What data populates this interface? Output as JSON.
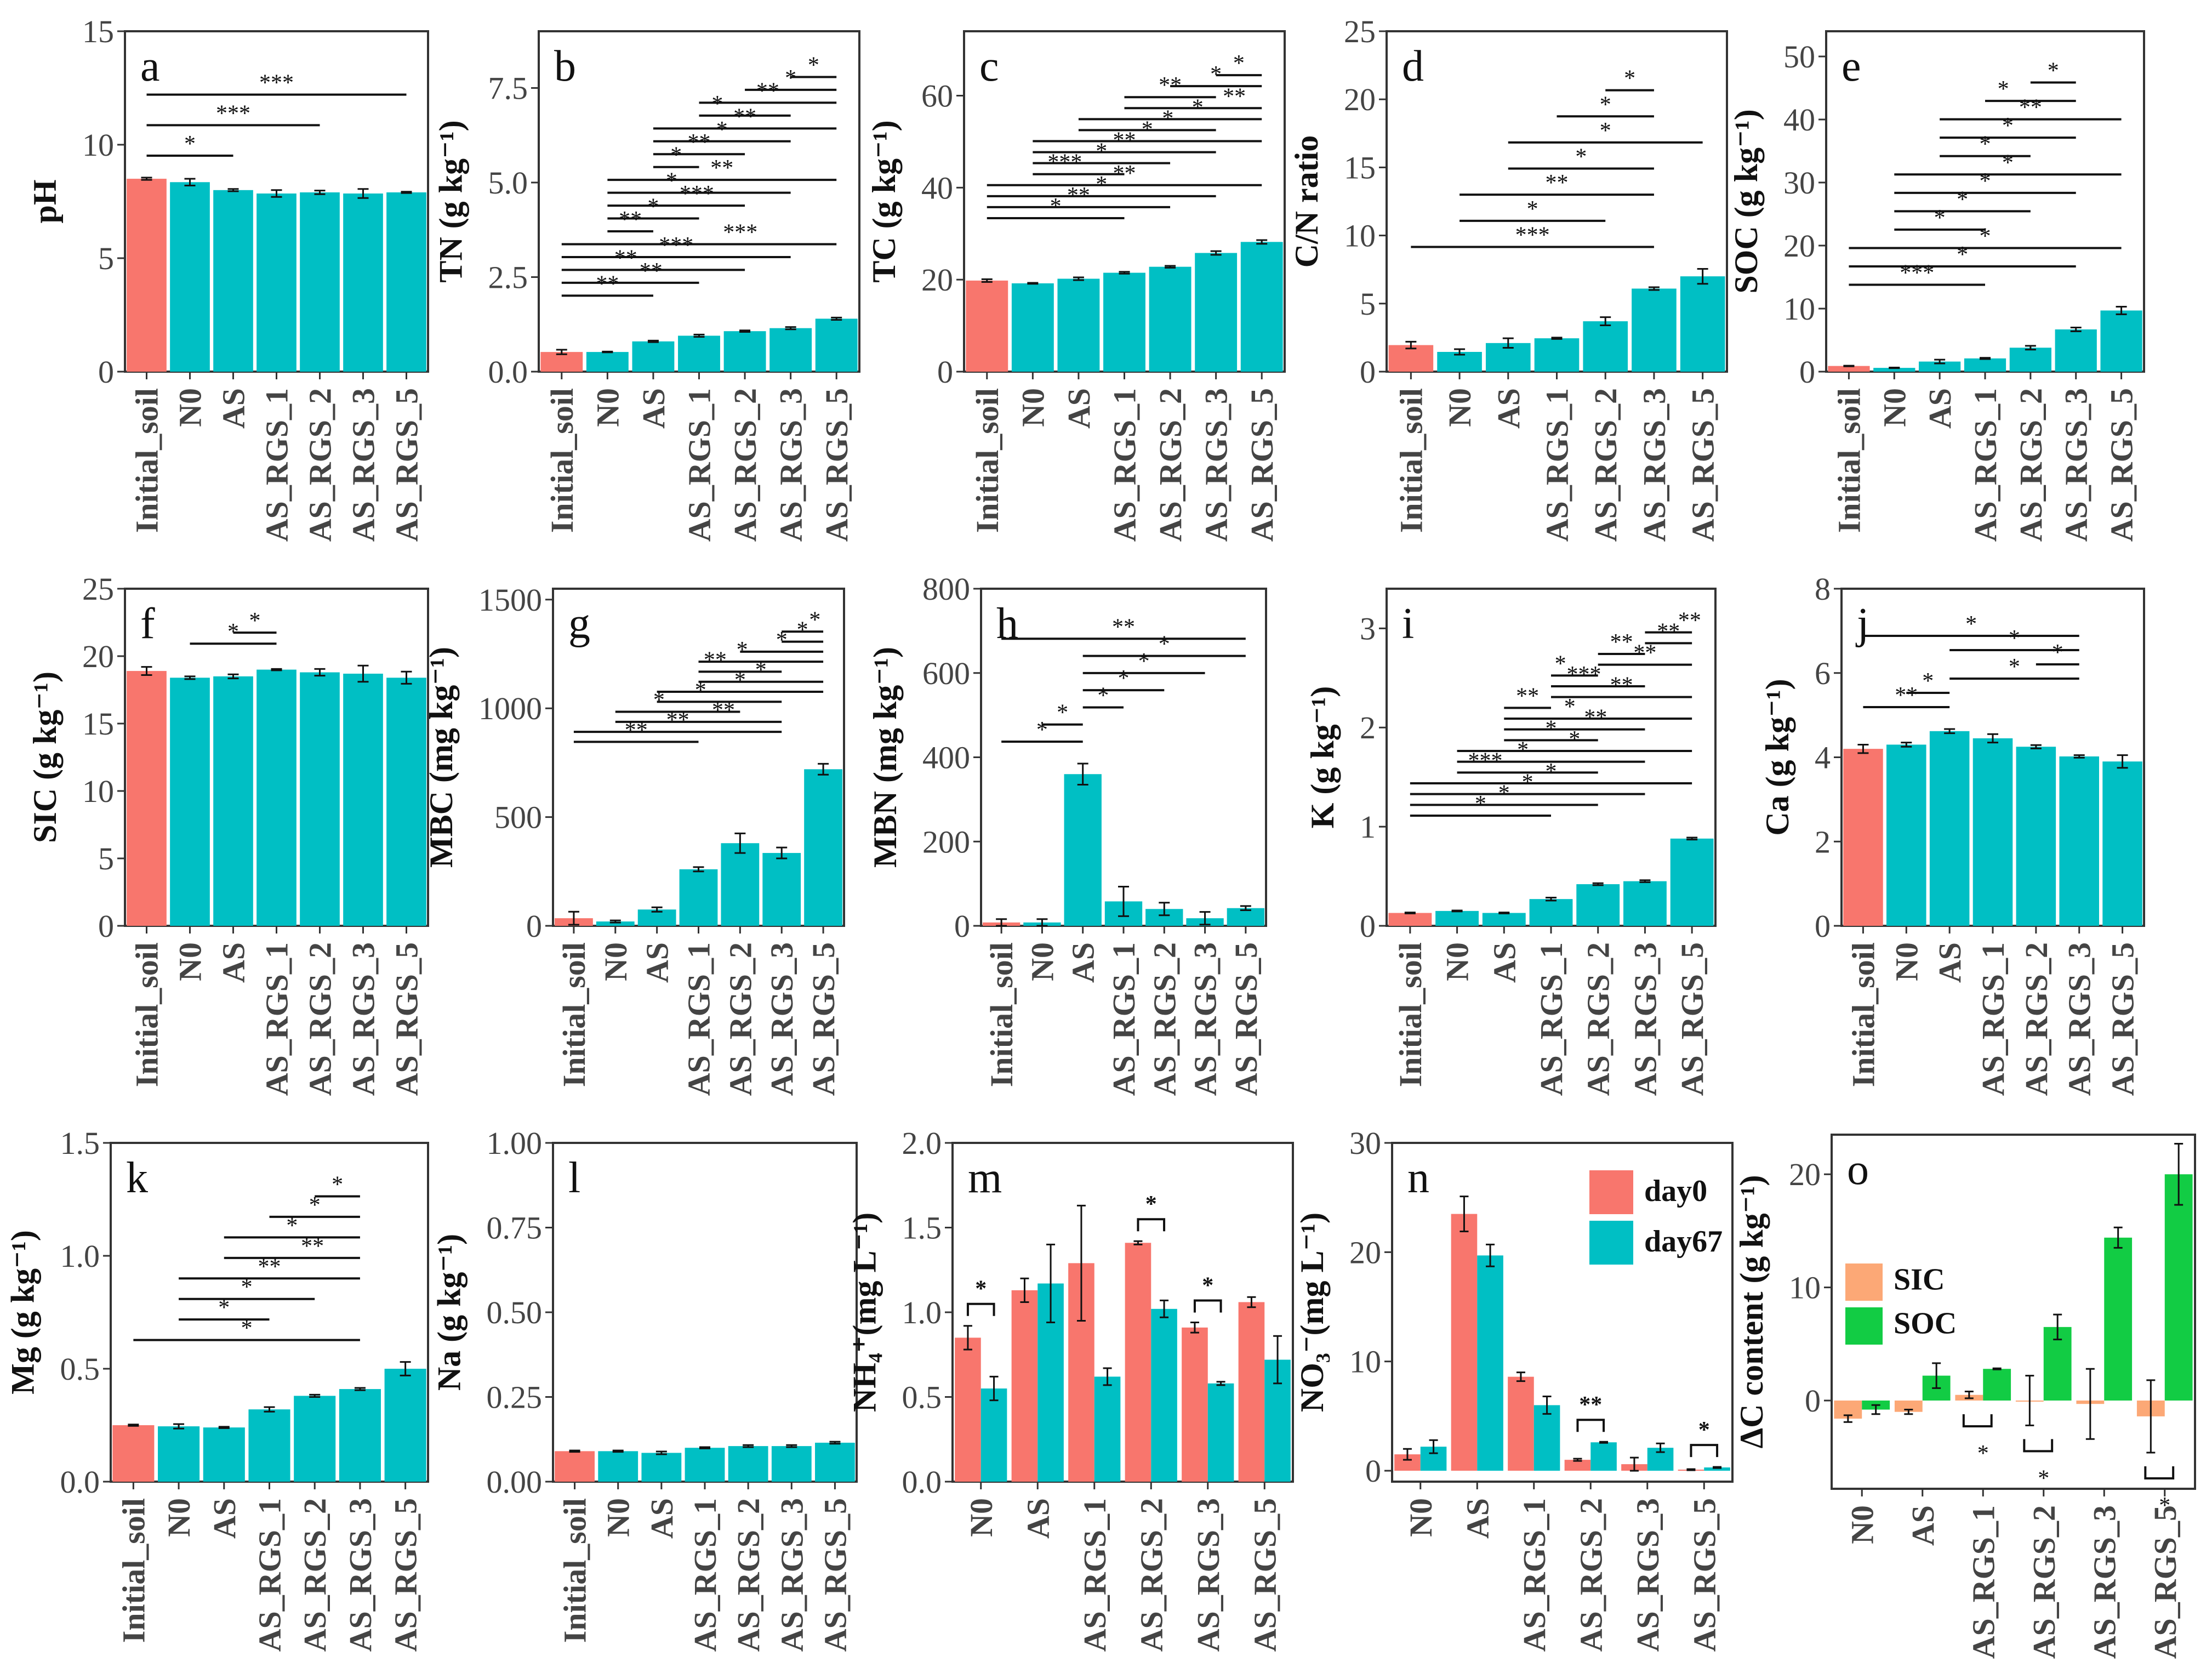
{
  "colors": {
    "initial": "#F8766D",
    "treat": "#00BFC4",
    "day0": "#F8766D",
    "day67": "#00BFC4",
    "SIC": "#FCA876",
    "SOC": "#12CC44"
  },
  "chart_data": [
    {
      "id": "a",
      "type": "bar",
      "ylabel": "pH",
      "ylim": [
        0,
        15
      ],
      "yticks": [
        "0",
        "5",
        "10",
        "15"
      ],
      "ytick_values": [
        0,
        5,
        10,
        15
      ],
      "categories": [
        "Initial_soil",
        "N0",
        "AS",
        "AS_RGS_1",
        "AS_RGS_2",
        "AS_RGS_3",
        "AS_RGS_5"
      ],
      "values": [
        8.5,
        8.35,
        8.0,
        7.85,
        7.9,
        7.85,
        7.9
      ],
      "err": [
        0.05,
        0.15,
        0.05,
        0.15,
        0.08,
        0.2,
        0.03
      ],
      "brackets": [
        [
          0,
          2,
          "*"
        ],
        [
          0,
          4,
          "***"
        ],
        [
          0,
          6,
          "***"
        ]
      ]
    },
    {
      "id": "b",
      "type": "bar",
      "ylabel": "TN (g kg⁻¹)",
      "ylim": [
        0,
        9
      ],
      "yticks": [
        "0.0",
        "2.5",
        "5.0",
        "7.5"
      ],
      "ytick_values": [
        0,
        2.5,
        5,
        7.5
      ],
      "categories": [
        "Initial_soil",
        "N0",
        "AS",
        "AS_RGS_1",
        "AS_RGS_2",
        "AS_RGS_3",
        "AS_RGS_5"
      ],
      "values": [
        0.52,
        0.52,
        0.8,
        0.95,
        1.07,
        1.15,
        1.4
      ],
      "err": [
        0.06,
        0.01,
        0.02,
        0.03,
        0.02,
        0.03,
        0.03
      ],
      "brackets": [
        [
          0,
          2,
          "**"
        ],
        [
          0,
          3,
          "**"
        ],
        [
          0,
          4,
          "**"
        ],
        [
          0,
          5,
          "***"
        ],
        [
          0,
          6,
          "***"
        ],
        [
          1,
          2,
          "**"
        ],
        [
          1,
          3,
          "*"
        ],
        [
          1,
          4,
          "***"
        ],
        [
          1,
          5,
          "*"
        ],
        [
          1,
          6,
          "**"
        ],
        [
          2,
          3,
          "*"
        ],
        [
          2,
          4,
          "**"
        ],
        [
          2,
          5,
          "*"
        ],
        [
          2,
          6,
          "**"
        ],
        [
          3,
          5,
          "*"
        ],
        [
          3,
          6,
          "**"
        ],
        [
          4,
          6,
          "*"
        ],
        [
          5,
          6,
          "*"
        ]
      ]
    },
    {
      "id": "c",
      "type": "bar",
      "ylabel": "TC (g kg⁻¹)",
      "ylim": [
        0,
        74
      ],
      "yticks": [
        "0",
        "20",
        "40",
        "60"
      ],
      "ytick_values": [
        0,
        20,
        40,
        60
      ],
      "categories": [
        "Initial_soil",
        "N0",
        "AS",
        "AS_RGS_1",
        "AS_RGS_2",
        "AS_RGS_3",
        "AS_RGS_5"
      ],
      "values": [
        19.8,
        19.2,
        20.2,
        21.5,
        22.8,
        25.8,
        28.2
      ],
      "err": [
        0.3,
        0.1,
        0.3,
        0.2,
        0.2,
        0.4,
        0.4
      ],
      "brackets": [
        [
          0,
          3,
          "*"
        ],
        [
          0,
          4,
          "**"
        ],
        [
          0,
          5,
          "*"
        ],
        [
          0,
          6,
          "**"
        ],
        [
          1,
          3,
          "***"
        ],
        [
          1,
          4,
          "*"
        ],
        [
          1,
          5,
          "**"
        ],
        [
          1,
          6,
          "*"
        ],
        [
          2,
          5,
          "*"
        ],
        [
          2,
          6,
          "*"
        ],
        [
          3,
          6,
          "**"
        ],
        [
          3,
          5,
          "**"
        ],
        [
          4,
          6,
          "*"
        ],
        [
          5,
          6,
          "*"
        ]
      ]
    },
    {
      "id": "d",
      "type": "bar",
      "ylabel": "C/N ratio",
      "ylim": [
        0,
        25
      ],
      "yticks": [
        "0",
        "5",
        "10",
        "15",
        "20",
        "25"
      ],
      "ytick_values": [
        0,
        5,
        10,
        15,
        20,
        25
      ],
      "categories": [
        "Initial_soil",
        "N0",
        "AS",
        "AS_RGS_1",
        "AS_RGS_2",
        "AS_RGS_3",
        "AS_RGS_5"
      ],
      "values": [
        1.95,
        1.45,
        2.1,
        2.45,
        3.7,
        6.1,
        7.0
      ],
      "err": [
        0.25,
        0.2,
        0.35,
        0.05,
        0.3,
        0.1,
        0.55
      ],
      "brackets": [
        [
          0,
          5,
          "***"
        ],
        [
          1,
          4,
          "*"
        ],
        [
          1,
          5,
          "**"
        ],
        [
          2,
          5,
          "*"
        ],
        [
          2,
          6,
          "*"
        ],
        [
          3,
          5,
          "*"
        ],
        [
          4,
          5,
          "*"
        ]
      ]
    },
    {
      "id": "e",
      "type": "bar",
      "ylabel": "SOC (g kg⁻¹)",
      "ylim": [
        0,
        54
      ],
      "yticks": [
        "0",
        "10",
        "20",
        "30",
        "40",
        "50"
      ],
      "ytick_values": [
        0,
        10,
        20,
        30,
        40,
        50
      ],
      "categories": [
        "Initial_soil",
        "N0",
        "AS",
        "AS_RGS_1",
        "AS_RGS_2",
        "AS_RGS_3",
        "AS_RGS_5"
      ],
      "values": [
        0.9,
        0.6,
        1.6,
        2.1,
        3.8,
        6.7,
        9.7
      ],
      "err": [
        0.05,
        0.05,
        0.3,
        0.1,
        0.3,
        0.3,
        0.6
      ],
      "brackets": [
        [
          0,
          3,
          "***"
        ],
        [
          0,
          5,
          "*"
        ],
        [
          0,
          6,
          "*"
        ],
        [
          1,
          3,
          "*"
        ],
        [
          1,
          4,
          "*"
        ],
        [
          1,
          5,
          "*"
        ],
        [
          1,
          6,
          "*"
        ],
        [
          2,
          4,
          "*"
        ],
        [
          2,
          5,
          "*"
        ],
        [
          2,
          6,
          "**"
        ],
        [
          3,
          5,
          "*"
        ],
        [
          4,
          5,
          "*"
        ]
      ]
    },
    {
      "id": "f",
      "type": "bar",
      "ylabel": "SIC (g kg⁻¹)",
      "ylim": [
        0,
        25
      ],
      "yticks": [
        "0",
        "5",
        "10",
        "15",
        "20",
        "25"
      ],
      "ytick_values": [
        0,
        5,
        10,
        15,
        20,
        25
      ],
      "categories": [
        "Initial_soil",
        "N0",
        "AS",
        "AS_RGS_1",
        "AS_RGS_2",
        "AS_RGS_3",
        "AS_RGS_5"
      ],
      "values": [
        18.9,
        18.4,
        18.5,
        19.0,
        18.8,
        18.7,
        18.4
      ],
      "err": [
        0.3,
        0.1,
        0.15,
        0.05,
        0.25,
        0.6,
        0.45
      ],
      "brackets": [
        [
          1,
          3,
          "*"
        ],
        [
          2,
          3,
          "*"
        ]
      ]
    },
    {
      "id": "g",
      "type": "bar",
      "ylabel": "MBC (mg kg⁻¹)",
      "ylim": [
        0,
        1550
      ],
      "yticks": [
        "0",
        "500",
        "1000",
        "1500"
      ],
      "ytick_values": [
        0,
        500,
        1000,
        1500
      ],
      "categories": [
        "Initial_soil",
        "N0",
        "AS",
        "AS_RGS_1",
        "AS_RGS_2",
        "AS_RGS_3",
        "AS_RGS_5"
      ],
      "values": [
        35,
        20,
        75,
        260,
        380,
        335,
        720
      ],
      "err": [
        30,
        5,
        10,
        10,
        45,
        25,
        25
      ],
      "brackets": [
        [
          0,
          3,
          "**"
        ],
        [
          0,
          5,
          "**"
        ],
        [
          1,
          5,
          "**"
        ],
        [
          1,
          4,
          "*"
        ],
        [
          2,
          5,
          "*"
        ],
        [
          2,
          6,
          "*"
        ],
        [
          3,
          6,
          "*"
        ],
        [
          3,
          5,
          "**"
        ],
        [
          3,
          6,
          "*"
        ],
        [
          4,
          6,
          "*"
        ],
        [
          5,
          6,
          "*"
        ],
        [
          5,
          6,
          "*"
        ]
      ]
    },
    {
      "id": "h",
      "type": "bar",
      "ylabel": "MBN (mg kg⁻¹)",
      "ylim": [
        0,
        800
      ],
      "yticks": [
        "0",
        "200",
        "400",
        "600",
        "800"
      ],
      "ytick_values": [
        0,
        200,
        400,
        600,
        800
      ],
      "categories": [
        "Initial_soil",
        "N0",
        "AS",
        "AS_RGS_1",
        "AS_RGS_2",
        "AS_RGS_3",
        "AS_RGS_5"
      ],
      "values": [
        8,
        8,
        360,
        58,
        40,
        18,
        42
      ],
      "err": [
        8,
        8,
        25,
        35,
        15,
        15,
        5
      ],
      "brackets": [
        [
          0,
          2,
          "*"
        ],
        [
          1,
          2,
          "*"
        ],
        [
          2,
          3,
          "*"
        ],
        [
          2,
          4,
          "*"
        ],
        [
          2,
          5,
          "*"
        ],
        [
          2,
          6,
          "*"
        ],
        [
          0,
          6,
          "**"
        ]
      ]
    },
    {
      "id": "i",
      "type": "bar",
      "ylabel": "K (g kg⁻¹)",
      "ylim": [
        0,
        3.4
      ],
      "yticks": [
        "0",
        "1",
        "2",
        "3"
      ],
      "ytick_values": [
        0,
        1,
        2,
        3
      ],
      "categories": [
        "Initial_soil",
        "N0",
        "AS",
        "AS_RGS_1",
        "AS_RGS_2",
        "AS_RGS_3",
        "AS_RGS_5"
      ],
      "values": [
        0.13,
        0.15,
        0.13,
        0.27,
        0.42,
        0.45,
        0.88
      ],
      "err": [
        0.005,
        0.005,
        0.005,
        0.015,
        0.01,
        0.01,
        0.01
      ],
      "brackets": [
        [
          0,
          3,
          "*"
        ],
        [
          0,
          4,
          "*"
        ],
        [
          0,
          5,
          "*"
        ],
        [
          0,
          6,
          "*"
        ],
        [
          1,
          4,
          "***"
        ],
        [
          1,
          5,
          "*"
        ],
        [
          1,
          6,
          "*"
        ],
        [
          2,
          4,
          "*"
        ],
        [
          2,
          5,
          "**"
        ],
        [
          2,
          6,
          "*"
        ],
        [
          2,
          3,
          "**"
        ],
        [
          3,
          6,
          "**"
        ],
        [
          3,
          5,
          "***"
        ],
        [
          3,
          4,
          "*"
        ],
        [
          4,
          6,
          "**"
        ],
        [
          4,
          5,
          "**"
        ],
        [
          5,
          6,
          "**"
        ],
        [
          5,
          6,
          "**"
        ]
      ]
    },
    {
      "id": "j",
      "type": "bar",
      "ylabel": "Ca (g kg⁻¹)",
      "ylim": [
        0,
        8
      ],
      "yticks": [
        "0",
        "2",
        "4",
        "6",
        "8"
      ],
      "ytick_values": [
        0,
        2,
        4,
        6,
        8
      ],
      "categories": [
        "Initial_soil",
        "N0",
        "AS",
        "AS_RGS_1",
        "AS_RGS_2",
        "AS_RGS_3",
        "AS_RGS_5"
      ],
      "values": [
        4.2,
        4.3,
        4.62,
        4.45,
        4.25,
        4.02,
        3.9
      ],
      "err": [
        0.1,
        0.05,
        0.05,
        0.1,
        0.04,
        0.03,
        0.15
      ],
      "brackets": [
        [
          0,
          2,
          "**"
        ],
        [
          1,
          2,
          "*"
        ],
        [
          2,
          5,
          "*"
        ],
        [
          4,
          5,
          "*"
        ],
        [
          2,
          5,
          "*"
        ],
        [
          0,
          5,
          "*"
        ]
      ]
    },
    {
      "id": "k",
      "type": "bar",
      "ylabel": "Mg (g kg⁻¹)",
      "ylim": [
        0,
        1.5
      ],
      "yticks": [
        "0.0",
        "0.5",
        "1.0",
        "1.5"
      ],
      "ytick_values": [
        0,
        0.5,
        1,
        1.5
      ],
      "categories": [
        "Initial_soil",
        "N0",
        "AS",
        "AS_RGS_1",
        "AS_RGS_2",
        "AS_RGS_3",
        "AS_RGS_5"
      ],
      "values": [
        0.25,
        0.245,
        0.24,
        0.32,
        0.38,
        0.41,
        0.5
      ],
      "err": [
        0.003,
        0.01,
        0.003,
        0.01,
        0.005,
        0.005,
        0.03
      ],
      "brackets": [
        [
          0,
          5,
          "*"
        ],
        [
          1,
          3,
          "*"
        ],
        [
          1,
          4,
          "*"
        ],
        [
          1,
          5,
          "**"
        ],
        [
          2,
          5,
          "**"
        ],
        [
          2,
          5,
          "*"
        ],
        [
          3,
          5,
          "*"
        ],
        [
          4,
          5,
          "*"
        ]
      ]
    },
    {
      "id": "l",
      "type": "bar",
      "ylabel": "Na (g kg⁻¹)",
      "ylim": [
        0,
        1
      ],
      "yticks": [
        "0.00",
        "0.25",
        "0.50",
        "0.75",
        "1.00"
      ],
      "ytick_values": [
        0,
        0.25,
        0.5,
        0.75,
        1
      ],
      "categories": [
        "Initial_soil",
        "N0",
        "AS",
        "AS_RGS_1",
        "AS_RGS_2",
        "AS_RGS_3",
        "AS_RGS_5"
      ],
      "values": [
        0.09,
        0.09,
        0.085,
        0.1,
        0.105,
        0.105,
        0.115
      ],
      "err": [
        0.002,
        0.002,
        0.004,
        0.002,
        0.003,
        0.003,
        0.003
      ],
      "brackets": []
    },
    {
      "id": "m",
      "type": "grouped_bar",
      "ylabel": "NH₄⁺(mg L⁻¹)",
      "ylim": [
        0,
        2
      ],
      "yticks": [
        "0.0",
        "0.5",
        "1.0",
        "1.5",
        "2.0"
      ],
      "ytick_values": [
        0,
        0.5,
        1,
        1.5,
        2
      ],
      "categories": [
        "N0",
        "AS",
        "AS_RGS_1",
        "AS_RGS_2",
        "AS_RGS_3",
        "AS_RGS_5"
      ],
      "series": [
        {
          "name": "day0",
          "values": [
            0.85,
            1.13,
            1.29,
            1.41,
            0.91,
            1.06
          ],
          "err": [
            0.07,
            0.07,
            0.34,
            0.01,
            0.03,
            0.03
          ]
        },
        {
          "name": "day67",
          "values": [
            0.55,
            1.17,
            0.62,
            1.02,
            0.58,
            0.72
          ],
          "err": [
            0.07,
            0.23,
            0.05,
            0.05,
            0.01,
            0.14
          ]
        }
      ],
      "sig": [
        [
          0,
          "*"
        ],
        [
          3,
          "*"
        ],
        [
          4,
          "*"
        ]
      ]
    },
    {
      "id": "n",
      "type": "grouped_bar",
      "ylabel": "NO₃⁻(mg L⁻¹)",
      "ylim": [
        -1,
        30
      ],
      "yticks": [
        "0",
        "10",
        "20",
        "30"
      ],
      "ytick_values": [
        0,
        10,
        20,
        30
      ],
      "categories": [
        "N0",
        "AS",
        "AS_RGS_1",
        "AS_RGS_2",
        "AS_RGS_3",
        "AS_RGS_5"
      ],
      "series": [
        {
          "name": "day0",
          "values": [
            1.5,
            23.5,
            8.6,
            1.0,
            0.6,
            0.1
          ],
          "err": [
            0.5,
            1.6,
            0.4,
            0.1,
            0.6,
            0.05
          ]
        },
        {
          "name": "day67",
          "values": [
            2.2,
            19.7,
            6.0,
            2.6,
            2.1,
            0.3
          ],
          "err": [
            0.6,
            1.0,
            0.8,
            0.05,
            0.4,
            0.05
          ]
        }
      ],
      "sig": [
        [
          3,
          "**"
        ],
        [
          5,
          "*"
        ]
      ],
      "legend": [
        "day0",
        "day67"
      ]
    },
    {
      "id": "o",
      "type": "grouped_bar",
      "ylabel": "ΔC content (g kg⁻¹)",
      "ylim": [
        -7.8,
        23.5
      ],
      "yticks": [
        "0",
        "10",
        "20"
      ],
      "ytick_values": [
        0,
        10,
        20
      ],
      "categories": [
        "N0",
        "AS",
        "AS_RGS_1",
        "AS_RGS_2",
        "AS_RGS_3",
        "AS_RGS_5"
      ],
      "series": [
        {
          "name": "SIC",
          "values": [
            -1.6,
            -1.0,
            0.5,
            0,
            -0.3,
            -1.4
          ],
          "err": [
            0.3,
            0.2,
            0.3,
            2.2,
            3.1,
            3.2
          ]
        },
        {
          "name": "SOC",
          "values": [
            -0.8,
            2.2,
            2.8,
            6.5,
            14.4,
            20.0
          ],
          "err": [
            0.4,
            1.1,
            0.05,
            1.1,
            0.9,
            2.7
          ]
        }
      ],
      "sig_below": [
        [
          2,
          "*"
        ],
        [
          3,
          "*"
        ],
        [
          5,
          "*"
        ]
      ],
      "legend": [
        "SIC",
        "SOC"
      ]
    }
  ]
}
